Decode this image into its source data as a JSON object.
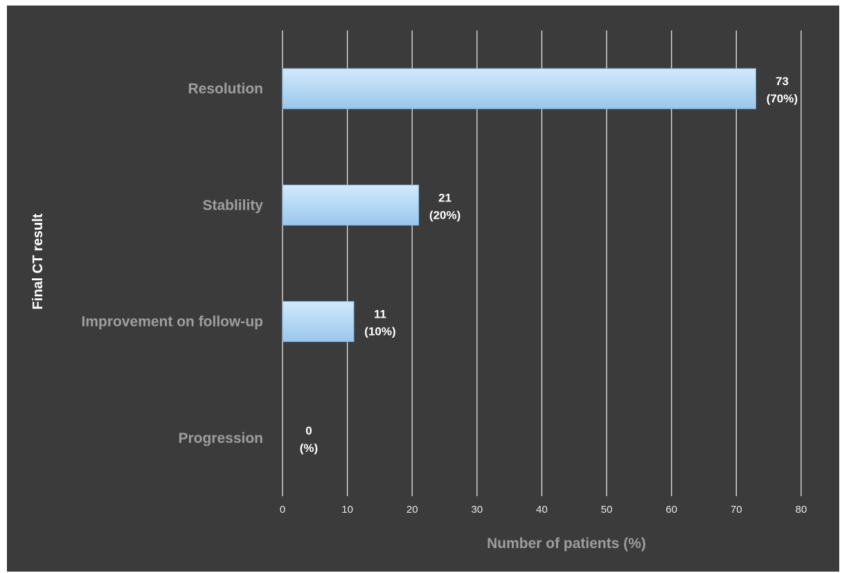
{
  "chart_data": {
    "type": "bar",
    "orientation": "horizontal",
    "categories": [
      "Resolution",
      "Stablility",
      "Improvement on follow-up",
      "Progression"
    ],
    "values": [
      73,
      21,
      11,
      0
    ],
    "data_labels": [
      {
        "count": "73",
        "percent": "(70%)"
      },
      {
        "count": "21",
        "percent": "(20%)"
      },
      {
        "count": "11",
        "percent": "(10%)"
      },
      {
        "count": "0",
        "percent": "(%)"
      }
    ],
    "xlabel": "Number of patients (%)",
    "ylabel": "Final CT result",
    "xlim": [
      0,
      80
    ],
    "xticks": [
      "0",
      "10",
      "20",
      "30",
      "40",
      "50",
      "60",
      "70",
      "80"
    ],
    "grid": "vertical",
    "legend": "none",
    "colors": {
      "background": "#3b3b3b",
      "bar_fill": "#b5d9f5",
      "bar_edge": "#8ab8de",
      "grid": "#e6e6e6",
      "category_text": "#9e9e9e",
      "tick_text": "#e8e8e8",
      "data_label_text": "#ffffff"
    }
  }
}
